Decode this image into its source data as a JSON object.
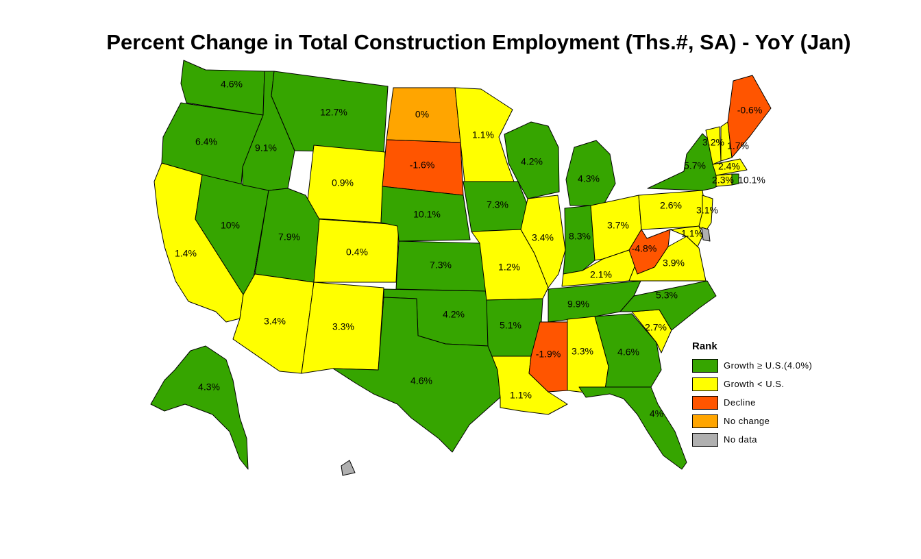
{
  "title": "Percent Change in Total Construction Employment (Ths.#, SA) - YoY (Jan)",
  "colors": {
    "growth_above": "#36A500",
    "growth_below": "#FFFF00",
    "decline": "#FF5500",
    "no_change": "#FFA500",
    "no_data": "#B0B0B0"
  },
  "legend": {
    "title": "Rank",
    "items": [
      {
        "key": "growth_above",
        "label": "Growth ≥ U.S.(4.0%)"
      },
      {
        "key": "growth_below",
        "label": "Growth < U.S."
      },
      {
        "key": "decline",
        "label": "Decline"
      },
      {
        "key": "no_change",
        "label": "No change"
      },
      {
        "key": "no_data",
        "label": "No data"
      }
    ]
  },
  "states": [
    {
      "code": "WA",
      "value": "4.6%",
      "category": "growth_above"
    },
    {
      "code": "OR",
      "value": "6.4%",
      "category": "growth_above"
    },
    {
      "code": "CA",
      "value": "1.4%",
      "category": "growth_below"
    },
    {
      "code": "NV",
      "value": "10%",
      "category": "growth_above"
    },
    {
      "code": "ID",
      "value": "9.1%",
      "category": "growth_above"
    },
    {
      "code": "MT",
      "value": "12.7%",
      "category": "growth_above"
    },
    {
      "code": "WY",
      "value": "0.9%",
      "category": "growth_below"
    },
    {
      "code": "UT",
      "value": "7.9%",
      "category": "growth_above"
    },
    {
      "code": "CO",
      "value": "0.4%",
      "category": "growth_below"
    },
    {
      "code": "AZ",
      "value": "3.4%",
      "category": "growth_below"
    },
    {
      "code": "NM",
      "value": "3.3%",
      "category": "growth_below"
    },
    {
      "code": "ND",
      "value": "0%",
      "category": "no_change"
    },
    {
      "code": "SD",
      "value": "-1.6%",
      "category": "decline"
    },
    {
      "code": "NE",
      "value": "10.1%",
      "category": "growth_above"
    },
    {
      "code": "KS",
      "value": "7.3%",
      "category": "growth_above"
    },
    {
      "code": "OK",
      "value": "4.2%",
      "category": "growth_above"
    },
    {
      "code": "TX",
      "value": "4.6%",
      "category": "growth_above"
    },
    {
      "code": "MN",
      "value": "1.1%",
      "category": "growth_below"
    },
    {
      "code": "IA",
      "value": "7.3%",
      "category": "growth_above"
    },
    {
      "code": "MO",
      "value": "1.2%",
      "category": "growth_below"
    },
    {
      "code": "AR",
      "value": "5.1%",
      "category": "growth_above"
    },
    {
      "code": "LA",
      "value": "1.1%",
      "category": "growth_below"
    },
    {
      "code": "WI",
      "value": "4.2%",
      "category": "growth_above"
    },
    {
      "code": "IL",
      "value": "3.4%",
      "category": "growth_below"
    },
    {
      "code": "MI",
      "value": "4.3%",
      "category": "growth_above"
    },
    {
      "code": "IN",
      "value": "8.3%",
      "category": "growth_above"
    },
    {
      "code": "OH",
      "value": "3.7%",
      "category": "growth_below"
    },
    {
      "code": "KY",
      "value": "2.1%",
      "category": "growth_below"
    },
    {
      "code": "TN",
      "value": "9.9%",
      "category": "growth_above"
    },
    {
      "code": "MS",
      "value": "-1.9%",
      "category": "decline"
    },
    {
      "code": "AL",
      "value": "3.3%",
      "category": "growth_below"
    },
    {
      "code": "GA",
      "value": "4.6%",
      "category": "growth_above"
    },
    {
      "code": "FL",
      "value": "4%",
      "category": "growth_above"
    },
    {
      "code": "SC",
      "value": "2.7%",
      "category": "growth_below"
    },
    {
      "code": "NC",
      "value": "5.3%",
      "category": "growth_above"
    },
    {
      "code": "VA",
      "value": "3.9%",
      "category": "growth_below"
    },
    {
      "code": "WV",
      "value": "-4.8%",
      "category": "decline"
    },
    {
      "code": "PA",
      "value": "2.6%",
      "category": "growth_below"
    },
    {
      "code": "NY",
      "value": "5.7%",
      "category": "growth_above"
    },
    {
      "code": "NJ",
      "value": "3.1%",
      "category": "growth_below"
    },
    {
      "code": "MD",
      "value": "1.1%",
      "category": "growth_below"
    },
    {
      "code": "DE",
      "value": "",
      "category": "no_data"
    },
    {
      "code": "VT",
      "value": "3.2%",
      "category": "growth_below"
    },
    {
      "code": "NH",
      "value": "1.7%",
      "category": "growth_below"
    },
    {
      "code": "ME",
      "value": "-0.6%",
      "category": "decline"
    },
    {
      "code": "MA",
      "value": "2.4%",
      "category": "growth_below"
    },
    {
      "code": "CT",
      "value": "2.3%",
      "category": "growth_below"
    },
    {
      "code": "RI",
      "value": "10.1%",
      "category": "growth_above"
    },
    {
      "code": "AK",
      "value": "4.3%",
      "category": "growth_above"
    },
    {
      "code": "HI",
      "value": "",
      "category": "no_data"
    }
  ]
}
